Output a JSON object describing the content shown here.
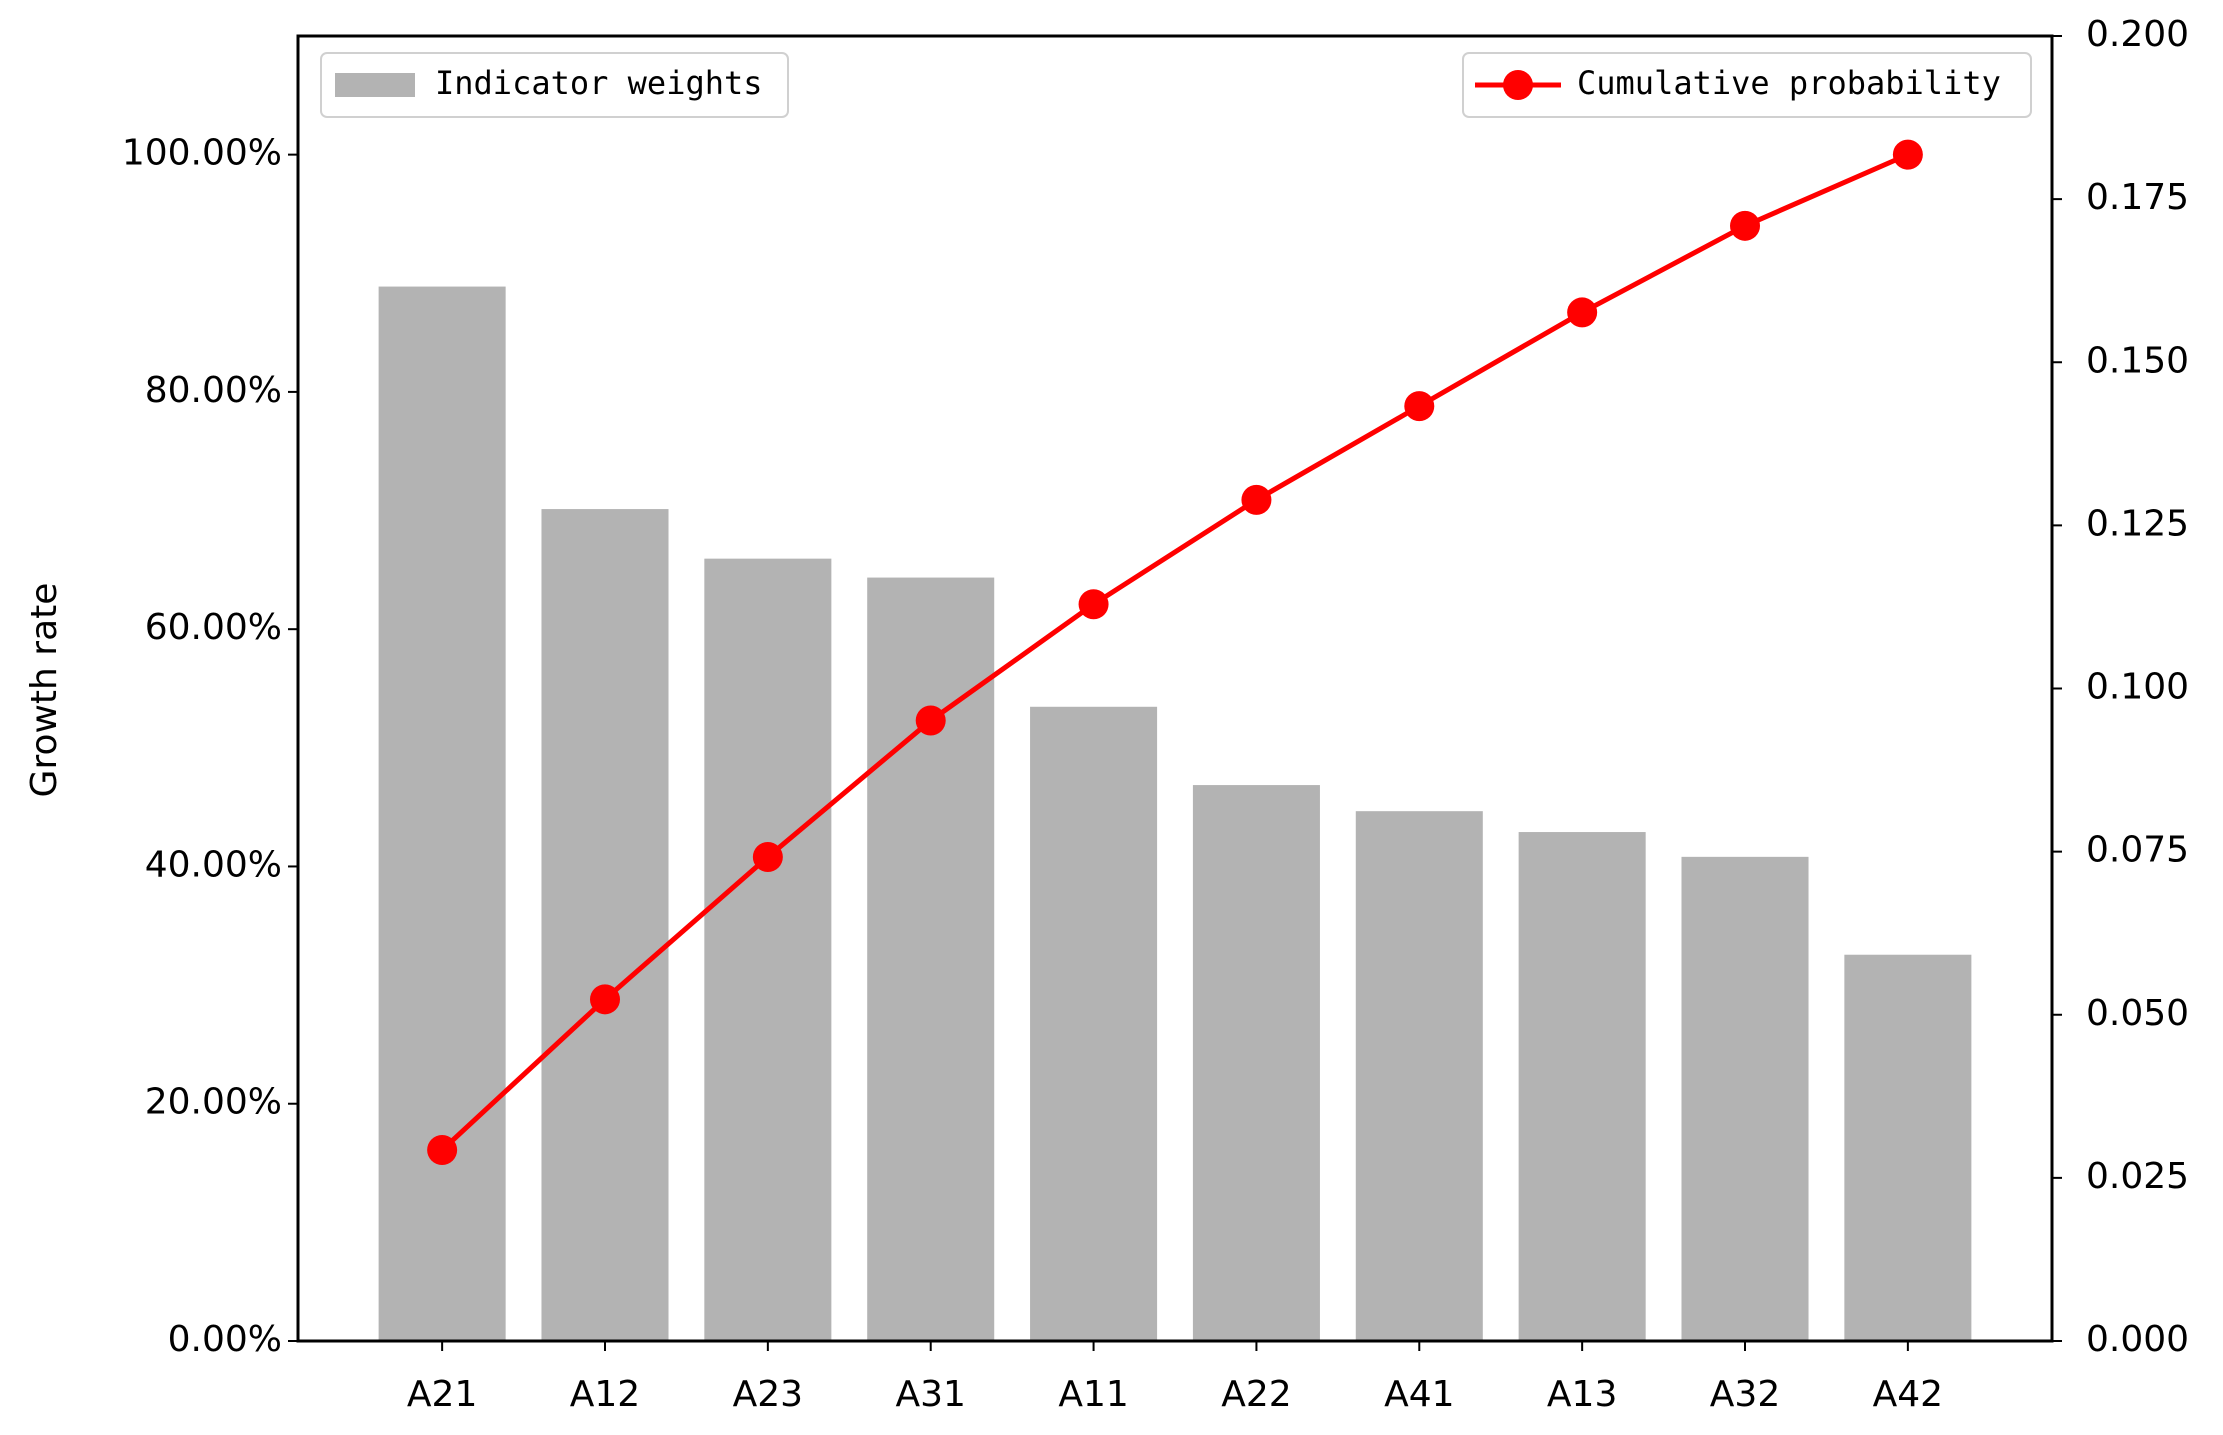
{
  "chart_data": {
    "type": "bar-line",
    "y_label": "Growth rate",
    "categories": [
      "A21",
      "A12",
      "A23",
      "A31",
      "A11",
      "A22",
      "A41",
      "A13",
      "A32",
      "A42"
    ],
    "series": [
      {
        "name": "Indicator weights",
        "type": "bar",
        "axis": "y2",
        "color": "#b3b3b3",
        "values": [
          0.1616,
          0.1275,
          0.1199,
          0.117,
          0.0972,
          0.0852,
          0.0812,
          0.078,
          0.0742,
          0.0592
        ]
      },
      {
        "name": "Cumulative probability",
        "type": "line",
        "axis": "y",
        "color": "#ff0000",
        "values": [
          16.1,
          28.8,
          40.8,
          52.3,
          62.1,
          70.9,
          78.8,
          86.7,
          94.0,
          100.0
        ]
      }
    ],
    "ylim": [
      0,
      110
    ],
    "yticks": [
      {
        "value": 0,
        "label": "0.00%"
      },
      {
        "value": 20,
        "label": "20.00%"
      },
      {
        "value": 40,
        "label": "40.00%"
      },
      {
        "value": 60,
        "label": "60.00%"
      },
      {
        "value": 80,
        "label": "80.00%"
      },
      {
        "value": 100,
        "label": "100.00%"
      }
    ],
    "y2lim": [
      0,
      0.2
    ],
    "y2ticks": [
      {
        "value": 0,
        "label": "0.000"
      },
      {
        "value": 0.025,
        "label": "0.025"
      },
      {
        "value": 0.05,
        "label": "0.050"
      },
      {
        "value": 0.075,
        "label": "0.075"
      },
      {
        "value": 0.1,
        "label": "0.100"
      },
      {
        "value": 0.125,
        "label": "0.125"
      },
      {
        "value": 0.15,
        "label": "0.150"
      },
      {
        "value": 0.175,
        "label": "0.175"
      },
      {
        "value": 0.2,
        "label": "0.200"
      }
    ],
    "legend": [
      "upper left",
      "upper right"
    ]
  }
}
